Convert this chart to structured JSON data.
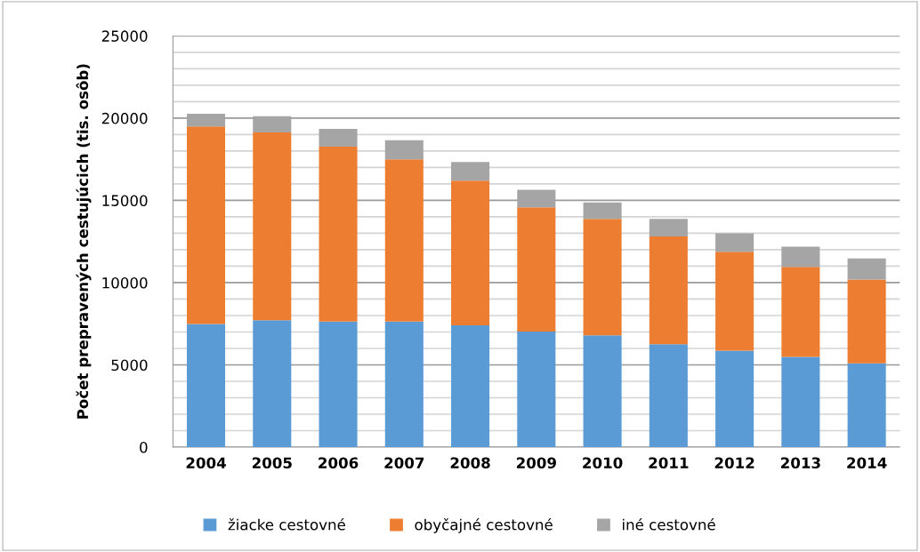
{
  "chart_data": {
    "type": "bar",
    "stacked": true,
    "ylabel": "Počet prepravených cestujúcich (tis. osôb)",
    "categories": [
      "2004",
      "2005",
      "2006",
      "2007",
      "2008",
      "2009",
      "2010",
      "2011",
      "2012",
      "2013",
      "2014"
    ],
    "series": [
      {
        "name": "žiacke cestovné",
        "color": "#5b9bd5",
        "values": [
          7490,
          7720,
          7630,
          7630,
          7400,
          7020,
          6790,
          6250,
          5870,
          5480,
          5100
        ]
      },
      {
        "name": "obyčajné cestovné",
        "color": "#ed7d31",
        "values": [
          12000,
          11410,
          10630,
          9860,
          8800,
          7560,
          7090,
          6560,
          6000,
          5480,
          5080
        ]
      },
      {
        "name": "iné cestovné",
        "color": "#a5a5a5",
        "values": [
          770,
          990,
          1080,
          1170,
          1130,
          1060,
          990,
          1060,
          1130,
          1220,
          1290
        ]
      }
    ],
    "ylim": [
      0,
      25000
    ],
    "yticks": [
      0,
      {
        "value": 1000,
        "label": null
      },
      {
        "value": 2000,
        "label": null
      },
      {
        "value": 3000,
        "label": null
      },
      {
        "value": 4000,
        "label": null
      },
      5000,
      {
        "value": 6000,
        "label": null
      },
      {
        "value": 7000,
        "label": null
      },
      {
        "value": 8000,
        "label": null
      },
      {
        "value": 9000,
        "label": null
      },
      10000,
      {
        "value": 11000,
        "label": null
      },
      {
        "value": 12000,
        "label": null
      },
      {
        "value": 13000,
        "label": null
      },
      {
        "value": 14000,
        "label": null
      },
      15000,
      {
        "value": 16000,
        "label": null
      },
      {
        "value": 17000,
        "label": null
      },
      {
        "value": 18000,
        "label": null
      },
      {
        "value": 19000,
        "label": null
      },
      20000,
      {
        "value": 21000,
        "label": null
      },
      {
        "value": 22000,
        "label": null
      },
      {
        "value": 23000,
        "label": null
      },
      {
        "value": 24000,
        "label": null
      },
      25000
    ],
    "grid": "y",
    "legend": "bottom"
  }
}
